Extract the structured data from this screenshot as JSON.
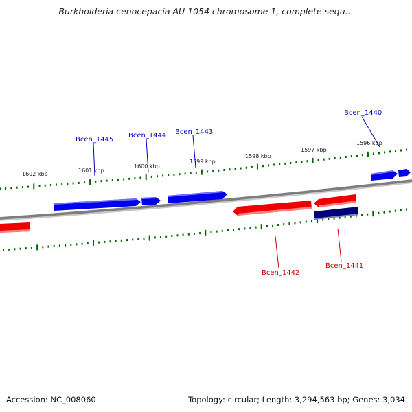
{
  "title": "Burkholderia cenocepacia AU 1054 chromosome 1, complete sequ...",
  "footer": {
    "accession": "Accession: NC_008060",
    "summary": "Topology: circular; Length: 3,294,563 bp; Genes: 3,034"
  },
  "colors": {
    "forward_gene": "#0000ee",
    "reverse_gene": "#ee0000",
    "selected_gene": "#000080",
    "tick": "#006600",
    "backbone": "#808080"
  },
  "position_labels": [
    "1602 kbp",
    "1601 kbp",
    "1600 kbp",
    "1599 kbp",
    "1598 kbp",
    "1597 kbp",
    "1596 kbp"
  ],
  "gene_labels": {
    "forward": [
      "Bcen_1445",
      "Bcen_1444",
      "Bcen_1443",
      "Bcen_1440"
    ],
    "reverse": [
      "Bcen_1442",
      "Bcen_1441"
    ]
  }
}
